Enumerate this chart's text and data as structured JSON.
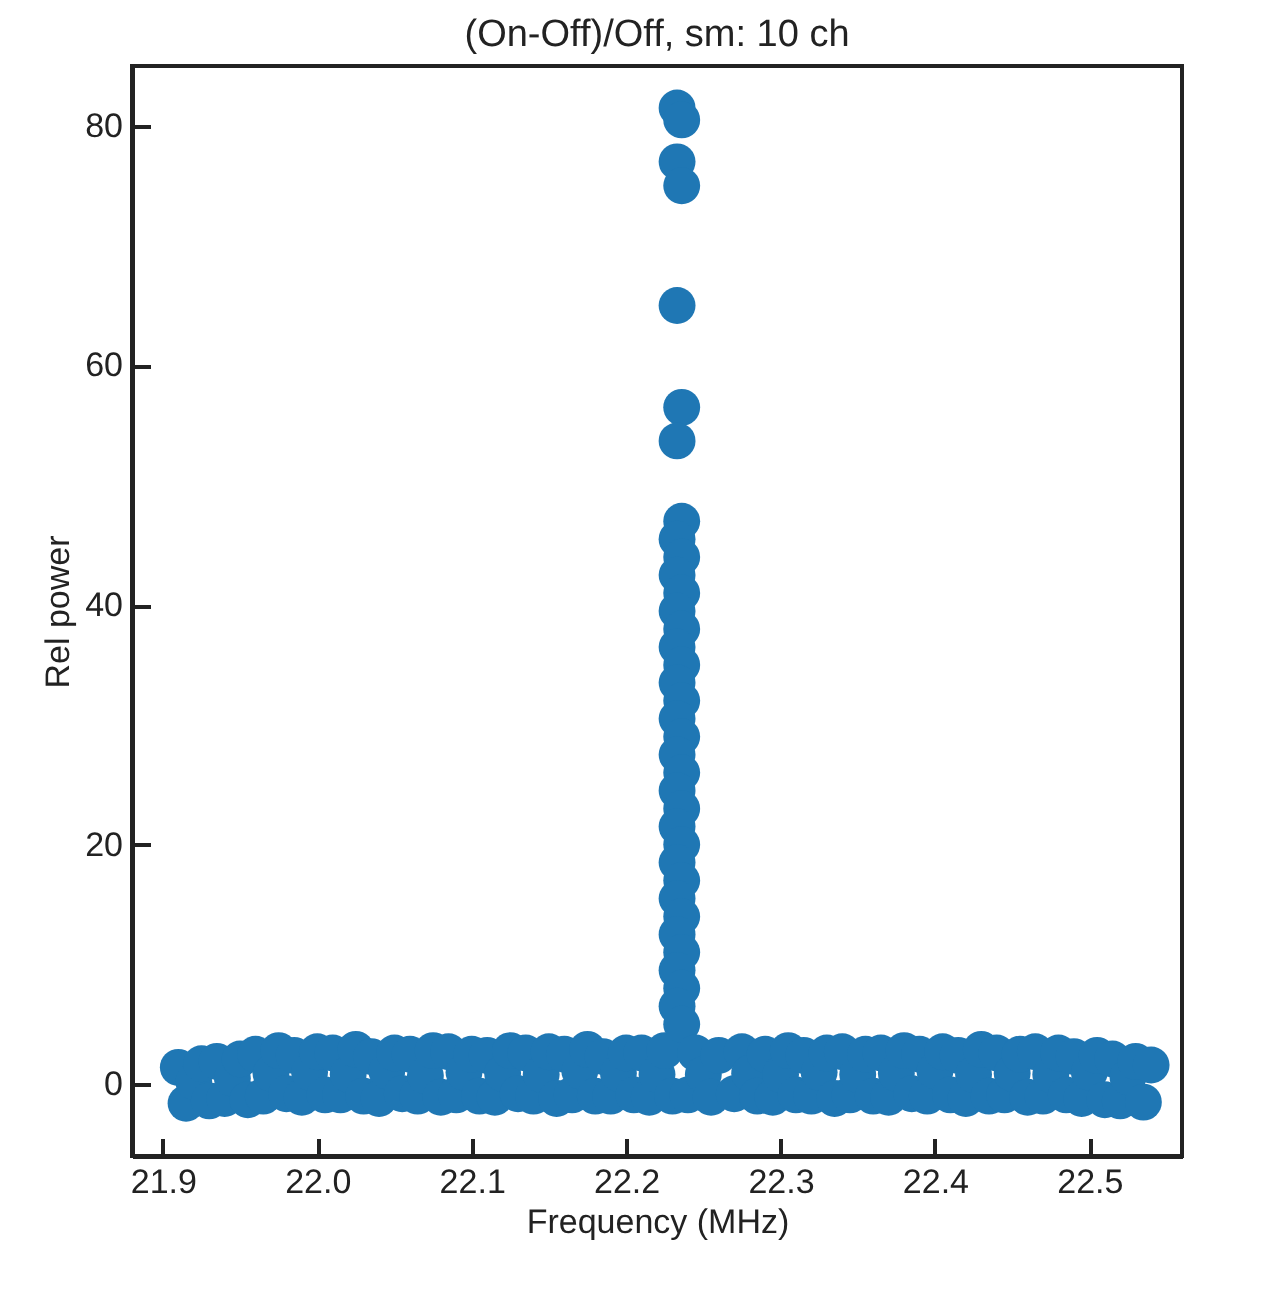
{
  "chart_data": {
    "type": "scatter",
    "title": "(On-Off)/Off, sm: 10 ch",
    "xlabel": "Frequency (MHz)",
    "ylabel": "Rel power",
    "xlim": [
      21.88,
      22.56
    ],
    "xticks": [
      {
        "value": 21.9,
        "label": "21.9"
      },
      {
        "value": 22.0,
        "label": "22.0"
      },
      {
        "value": 22.1,
        "label": "22.1"
      },
      {
        "value": 22.2,
        "label": "22.2"
      },
      {
        "value": 22.3,
        "label": "22.3"
      },
      {
        "value": 22.4,
        "label": "22.4"
      },
      {
        "value": 22.5,
        "label": "22.5"
      }
    ],
    "ylim": [
      -6,
      85
    ],
    "yticks": [
      0,
      20,
      40,
      60,
      80
    ],
    "grid": false,
    "marker": "circle",
    "series": [
      {
        "color": "#1f77b4",
        "x": [
          21.91,
          21.915,
          21.92,
          21.925,
          21.93,
          21.935,
          21.94,
          21.945,
          21.95,
          21.955,
          21.96,
          21.965,
          21.97,
          21.975,
          21.98,
          21.985,
          21.99,
          21.995,
          22.0,
          22.005,
          22.01,
          22.015,
          22.02,
          22.025,
          22.03,
          22.035,
          22.04,
          22.045,
          22.05,
          22.055,
          22.06,
          22.065,
          22.07,
          22.075,
          22.08,
          22.085,
          22.09,
          22.095,
          22.1,
          22.105,
          22.11,
          22.115,
          22.12,
          22.125,
          22.13,
          22.135,
          22.14,
          22.145,
          22.15,
          22.155,
          22.16,
          22.165,
          22.17,
          22.175,
          22.18,
          22.185,
          22.19,
          22.195,
          22.2,
          22.205,
          22.21,
          22.215,
          22.22,
          22.225,
          22.23,
          22.233,
          22.236,
          22.233,
          22.236,
          22.233,
          22.236,
          22.233,
          22.236,
          22.233,
          22.236,
          22.233,
          22.236,
          22.233,
          22.236,
          22.233,
          22.236,
          22.233,
          22.236,
          22.233,
          22.236,
          22.233,
          22.236,
          22.233,
          22.236,
          22.233,
          22.236,
          22.233,
          22.236,
          22.233,
          22.236,
          22.233,
          22.236,
          22.233,
          22.236,
          22.233,
          22.236,
          22.24,
          22.245,
          22.25,
          22.255,
          22.26,
          22.27,
          22.275,
          22.28,
          22.285,
          22.29,
          22.295,
          22.3,
          22.305,
          22.31,
          22.315,
          22.32,
          22.325,
          22.33,
          22.335,
          22.34,
          22.345,
          22.35,
          22.355,
          22.36,
          22.365,
          22.37,
          22.375,
          22.38,
          22.385,
          22.39,
          22.395,
          22.4,
          22.405,
          22.41,
          22.415,
          22.42,
          22.425,
          22.43,
          22.435,
          22.44,
          22.445,
          22.45,
          22.455,
          22.46,
          22.465,
          22.47,
          22.475,
          22.48,
          22.485,
          22.49,
          22.495,
          22.5,
          22.505,
          22.51,
          22.515,
          22.52,
          22.525,
          22.53,
          22.535,
          22.54
        ],
        "values": [
          1.4,
          -1.6,
          0.2,
          1.7,
          -1.4,
          1.9,
          -1.2,
          0.5,
          2.1,
          -1.3,
          2.5,
          -1.0,
          0.9,
          2.8,
          -0.8,
          2.4,
          -1.1,
          1.0,
          2.7,
          -0.9,
          2.6,
          -0.9,
          0.8,
          2.9,
          -1.0,
          2.3,
          -1.2,
          1.1,
          2.6,
          -0.8,
          2.5,
          -1.0,
          0.7,
          2.8,
          -1.1,
          2.7,
          -0.9,
          1.0,
          2.5,
          -1.0,
          2.4,
          -1.1,
          0.9,
          2.8,
          -0.8,
          2.6,
          -1.0,
          0.8,
          2.7,
          -1.2,
          2.5,
          -0.9,
          1.1,
          2.9,
          -1.0,
          2.3,
          -1.0,
          0.9,
          2.6,
          -0.9,
          2.6,
          -1.1,
          0.8,
          2.8,
          -1.0,
          81.5,
          80.5,
          77.0,
          75.0,
          65.0,
          56.5,
          53.7,
          47.0,
          45.5,
          44.0,
          42.5,
          41.0,
          39.5,
          38.0,
          36.5,
          35.0,
          33.5,
          32.0,
          30.5,
          29.0,
          27.5,
          26.0,
          24.5,
          23.0,
          21.5,
          20.0,
          18.5,
          17.0,
          15.5,
          14.0,
          12.5,
          11.0,
          9.5,
          8.0,
          6.5,
          5.0,
          -0.9,
          2.6,
          0.8,
          -1.1,
          2.4,
          -0.8,
          2.7,
          0.9,
          -1.0,
          2.5,
          -1.1,
          0.8,
          2.8,
          -0.9,
          2.4,
          -1.0,
          1.0,
          2.6,
          -1.2,
          2.7,
          -0.9,
          0.8,
          2.5,
          -1.0,
          2.6,
          -1.1,
          0.9,
          2.8,
          -0.8,
          2.5,
          -1.0,
          1.1,
          2.7,
          -0.9,
          2.4,
          -1.2,
          0.8,
          2.9,
          -1.0,
          2.6,
          -0.9,
          0.9,
          2.5,
          -1.1,
          2.7,
          -1.0,
          0.8,
          2.6,
          -0.9,
          2.3,
          -1.2,
          1.0,
          2.4,
          -1.3,
          2.1,
          -1.4,
          0.6,
          1.9,
          -1.5,
          1.6
        ]
      }
    ]
  }
}
